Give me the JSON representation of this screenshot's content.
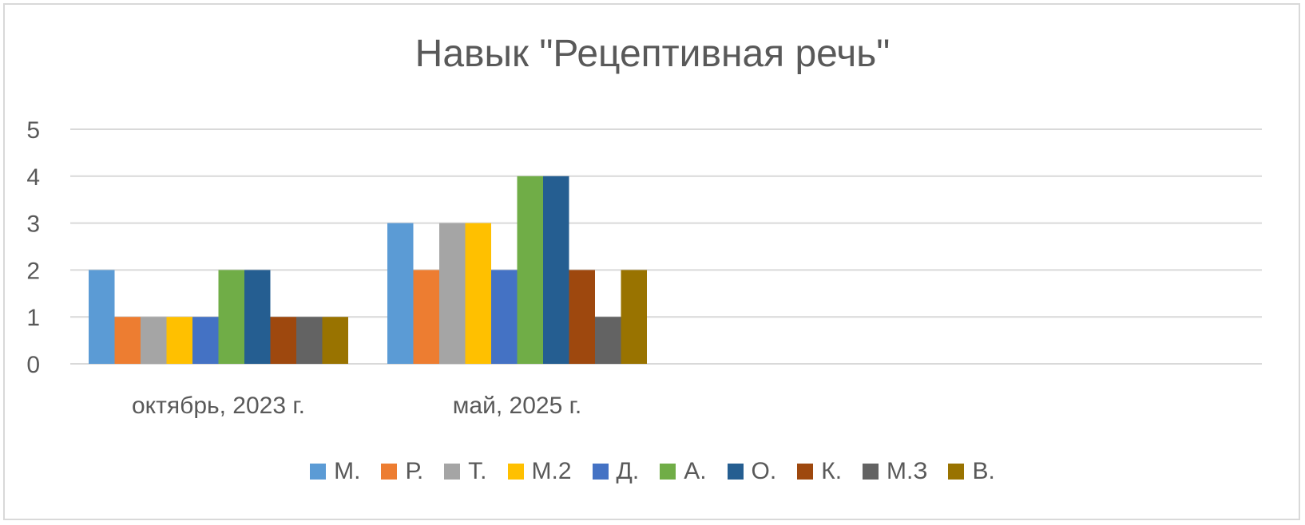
{
  "chart_data": {
    "type": "bar",
    "title": "Навык \"Рецептивная речь\"",
    "categories": [
      "октябрь, 2023 г.",
      "май, 2025 г."
    ],
    "ylim": [
      0,
      5
    ],
    "yticks": [
      "0",
      "1",
      "2",
      "3",
      "4",
      "5"
    ],
    "grid": true,
    "legend_position": "bottom",
    "series": [
      {
        "name": "М.",
        "color": "#5b9bd5",
        "values": [
          2,
          3
        ]
      },
      {
        "name": "Р.",
        "color": "#ed7d31",
        "values": [
          1,
          2
        ]
      },
      {
        "name": "Т.",
        "color": "#a5a5a5",
        "values": [
          1,
          3
        ]
      },
      {
        "name": "М.2",
        "color": "#ffc000",
        "values": [
          1,
          3
        ]
      },
      {
        "name": "Д.",
        "color": "#4472c4",
        "values": [
          1,
          2
        ]
      },
      {
        "name": "А.",
        "color": "#70ad47",
        "values": [
          2,
          4
        ]
      },
      {
        "name": "О.",
        "color": "#255e91",
        "values": [
          2,
          4
        ]
      },
      {
        "name": "К.",
        "color": "#9e480e",
        "values": [
          1,
          2
        ]
      },
      {
        "name": "М.З",
        "color": "#636363",
        "values": [
          1,
          1
        ]
      },
      {
        "name": "В.",
        "color": "#997300",
        "values": [
          1,
          2
        ]
      }
    ]
  }
}
